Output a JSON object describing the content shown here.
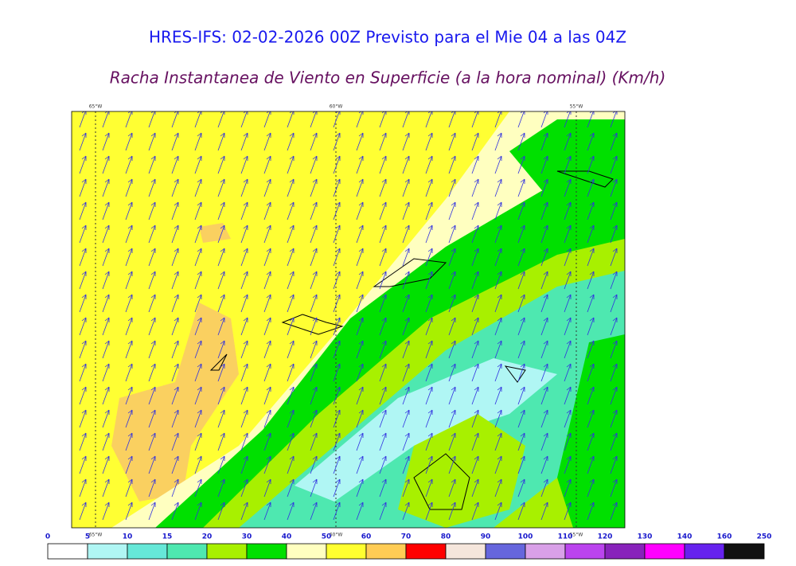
{
  "header": {
    "title": "HRES-IFS: 02-02-2026 00Z Previsto para el Mie 04 a las 04Z",
    "subtitle": "Racha Instantanea de Viento en Superficie (a la hora nominal) (Km/h)"
  },
  "map": {
    "lon_labels_top": [
      "65°W",
      "60°W",
      "55°W"
    ],
    "lon_labels_bottom": [
      "65°W",
      "60°W",
      "55°W"
    ]
  },
  "legend": {
    "labels": [
      "0",
      "5",
      "10",
      "15",
      "20",
      "30",
      "40",
      "50",
      "60",
      "70",
      "80",
      "90",
      "100",
      "110",
      "120",
      "130",
      "140",
      "160",
      "250"
    ],
    "colors": [
      "#ffffff",
      "#b0f6f4",
      "#66e8d8",
      "#4ee8b0",
      "#a8f000",
      "#00e000",
      "#ffffc0",
      "#ffff30",
      "#ffcc55",
      "#ff0000",
      "#f5e6dc",
      "#6666dd",
      "#d9a0e8",
      "#bb44ee",
      "#8822bb",
      "#ff00ff",
      "#6622ee",
      "#111111"
    ]
  }
}
